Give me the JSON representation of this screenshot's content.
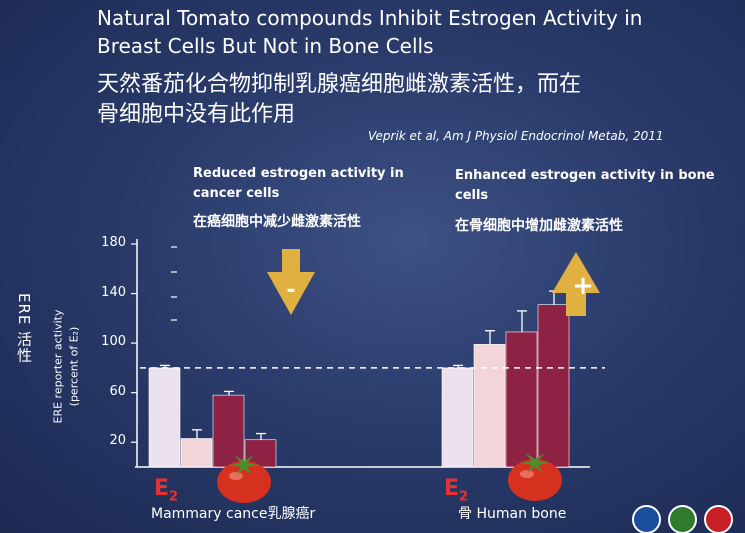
{
  "title_en": [
    "Natural Tomato compounds Inhibit Estrogen Activity in",
    "Breast Cells But Not in Bone Cells"
  ],
  "title_zh": [
    "天然番茄化合物抑制乳腺癌细胞雌激素活性，而在",
    "骨细胞中没有此作用"
  ],
  "citation": "Veprik et al, Am J Physiol Endocrinol Metab, 2011",
  "annotations": {
    "left_en": "Reduced estrogen activity in cancer cells",
    "left_zh": "在癌细胞中减少雌激素活性",
    "left_sign": "-",
    "right_en": "Enhanced estrogen activity in bone cells",
    "right_zh": "在骨细胞中增加雌激素活性",
    "right_sign": "+"
  },
  "side_label": "ERE 活性",
  "e2_label": "E",
  "e2_sub": "2",
  "chart_data": {
    "type": "bar",
    "ylabel": [
      "ERE  reporter activity",
      "(percent of E₂)"
    ],
    "ylim": [
      0,
      180
    ],
    "yticks": [
      "20",
      "60",
      "100",
      "140",
      "180"
    ],
    "ytick_values": [
      20,
      60,
      100,
      140,
      180
    ],
    "reference_line": 80,
    "groups": [
      {
        "name": "Mammary cance乳腺癌r",
        "values": [
          80,
          23,
          58,
          22
        ],
        "errors": [
          2,
          7,
          3,
          5
        ]
      },
      {
        "name": "骨 Human bone",
        "values": [
          80,
          99,
          109,
          131
        ],
        "errors": [
          2,
          11,
          17,
          11
        ]
      }
    ],
    "bar_colors": [
      "#ebe2ee",
      "#f2d4d9",
      "#8d2245",
      "#8d2245"
    ],
    "grid": false,
    "legend": "none"
  }
}
